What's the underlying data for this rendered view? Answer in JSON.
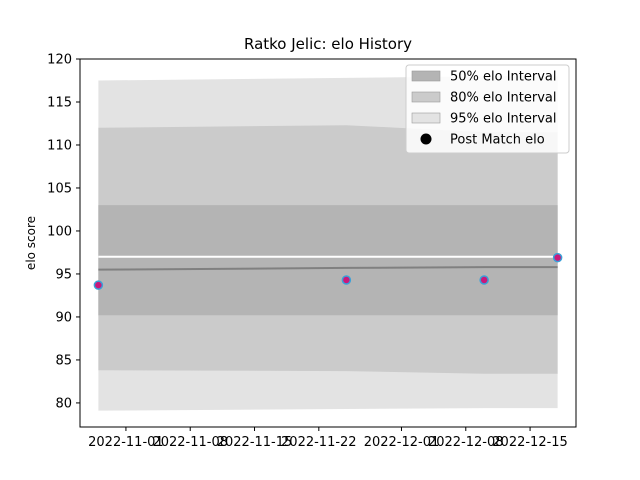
{
  "chart_data": {
    "type": "area",
    "title": "Ratko Jelic: elo History",
    "xlabel": "",
    "ylabel": "elo score",
    "xlim": [
      "2022-10-27",
      "2022-12-20"
    ],
    "ylim": [
      77.2,
      120
    ],
    "x_ticks": [
      "2022-11-01",
      "2022-11-08",
      "2022-11-15",
      "2022-11-22",
      "2022-12-01",
      "2022-12-08",
      "2022-12-15"
    ],
    "y_ticks": [
      80,
      85,
      90,
      95,
      100,
      105,
      110,
      115,
      120
    ],
    "grid": false,
    "legend_position": "top-right",
    "x": [
      "2022-10-29",
      "2022-11-25",
      "2022-12-10",
      "2022-12-18"
    ],
    "bands": [
      {
        "name": "95% elo Interval",
        "color": "#e3e3e3",
        "lower": [
          79.1,
          79.3,
          79.4,
          79.4
        ],
        "upper": [
          117.5,
          117.8,
          118.0,
          118.0
        ]
      },
      {
        "name": "80% elo Interval",
        "color": "#cbcbcb",
        "lower": [
          83.8,
          83.7,
          83.4,
          83.4
        ],
        "upper": [
          112.0,
          112.3,
          111.5,
          111.5
        ]
      },
      {
        "name": "50% elo Interval",
        "color": "#b4b4b4",
        "lower": [
          90.2,
          90.2,
          90.2,
          90.2
        ],
        "upper": [
          103.0,
          103.0,
          103.0,
          103.0
        ]
      }
    ],
    "mean_line": {
      "color": "#808080",
      "values": [
        95.5,
        95.7,
        95.8,
        95.8
      ]
    },
    "white_line": {
      "color": "#ffffff",
      "values": [
        97.0,
        97.0,
        97.0,
        97.0
      ]
    },
    "series": [
      {
        "name": "Post Match elo",
        "type": "scatter",
        "x": [
          "2022-10-29",
          "2022-11-25",
          "2022-12-10",
          "2022-12-18"
        ],
        "values": [
          93.7,
          94.3,
          94.3,
          96.9
        ],
        "fill": "#c9197b",
        "edge": "#3aa0d8"
      }
    ],
    "legend": [
      {
        "label": "50% elo Interval",
        "kind": "patch",
        "color": "#b4b4b4"
      },
      {
        "label": "80% elo Interval",
        "kind": "patch",
        "color": "#cbcbcb"
      },
      {
        "label": "95% elo Interval",
        "kind": "patch",
        "color": "#e3e3e3"
      },
      {
        "label": "Post Match elo",
        "kind": "marker",
        "color": "#000000"
      }
    ]
  }
}
